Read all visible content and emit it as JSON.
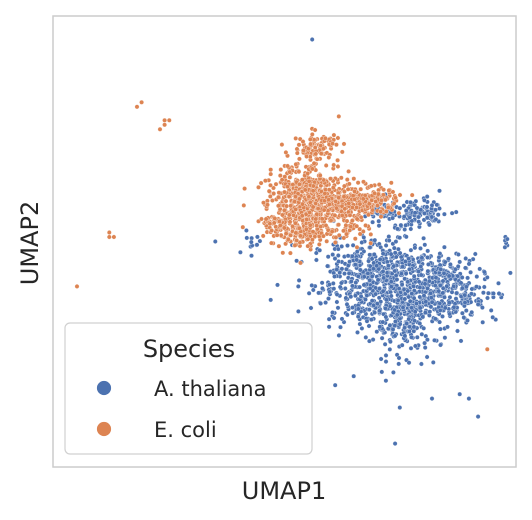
{
  "chart_data": {
    "type": "scatter",
    "title": "",
    "xlabel": "UMAP1",
    "ylabel": "UMAP2",
    "xlim": [
      0,
      100
    ],
    "ylim": [
      0,
      100
    ],
    "grid": false,
    "ticks": false,
    "legend": {
      "title": "Species",
      "placement": "lower-left",
      "entries": [
        {
          "label": "A. thaliana",
          "color": "#4c72b0"
        },
        {
          "label": "E. coli",
          "color": "#dd8452"
        }
      ]
    },
    "series": [
      {
        "name": "A. thaliana",
        "color": "#4c72b0",
        "clusters": [
          {
            "cx": 68,
            "cy": 41,
            "sx": 6,
            "sy": 5,
            "n": 420
          },
          {
            "cx": 77,
            "cy": 36,
            "sx": 5,
            "sy": 5,
            "n": 300
          },
          {
            "cx": 85,
            "cy": 42,
            "sx": 4,
            "sy": 3,
            "n": 150
          },
          {
            "cx": 88,
            "cy": 38,
            "sx": 4,
            "sy": 3,
            "n": 110
          },
          {
            "cx": 76,
            "cy": 32,
            "sx": 3,
            "sy": 4,
            "n": 120
          },
          {
            "cx": 73,
            "cy": 44,
            "sx": 4,
            "sy": 2.5,
            "n": 120
          },
          {
            "cx": 73,
            "cy": 56,
            "sx": 4,
            "sy": 1.6,
            "n": 70
          },
          {
            "cx": 80,
            "cy": 56,
            "sx": 3,
            "sy": 1.6,
            "n": 80
          },
          {
            "cx": 43,
            "cy": 50,
            "sx": 1.2,
            "sy": 1.4,
            "n": 12
          },
          {
            "cx": 96,
            "cy": 38,
            "sx": 1,
            "sy": 0.6,
            "n": 8
          },
          {
            "cx": 98,
            "cy": 50,
            "sx": 0.6,
            "sy": 1.2,
            "n": 6
          }
        ],
        "points": [
          [
            56,
            95
          ],
          [
            35,
            50
          ],
          [
            47,
            37
          ],
          [
            53,
            40
          ],
          [
            66,
            35
          ],
          [
            65,
            20
          ],
          [
            92,
            36
          ],
          [
            93,
            32
          ],
          [
            77,
            23
          ],
          [
            72,
            19
          ],
          [
            61,
            18
          ],
          [
            82,
            15
          ],
          [
            88,
            16
          ],
          [
            75,
            13
          ],
          [
            90,
            15
          ],
          [
            74,
            5
          ],
          [
            92,
            11
          ],
          [
            94,
            42
          ],
          [
            99,
            43
          ]
        ]
      },
      {
        "name": "E. coli",
        "color": "#dd8452",
        "clusters": [
          {
            "cx": 55,
            "cy": 57,
            "sx": 4.5,
            "sy": 4,
            "n": 450
          },
          {
            "cx": 54,
            "cy": 62,
            "sx": 3,
            "sy": 3,
            "n": 160
          },
          {
            "cx": 61,
            "cy": 59,
            "sx": 5,
            "sy": 2.2,
            "n": 220
          },
          {
            "cx": 68,
            "cy": 59,
            "sx": 3.5,
            "sy": 1.5,
            "n": 120
          },
          {
            "cx": 57,
            "cy": 71,
            "sx": 2.5,
            "sy": 1.6,
            "n": 100
          },
          {
            "cx": 48,
            "cy": 54,
            "sx": 2,
            "sy": 1,
            "n": 40
          },
          {
            "cx": 54,
            "cy": 52,
            "sx": 2,
            "sy": 1.5,
            "n": 60
          },
          {
            "cx": 64,
            "cy": 53,
            "sx": 3,
            "sy": 1.5,
            "n": 30
          }
        ],
        "points": [
          [
            18,
            80
          ],
          [
            19,
            81
          ],
          [
            24,
            77
          ],
          [
            24,
            76
          ],
          [
            23,
            75
          ],
          [
            25,
            77
          ],
          [
            12,
            51
          ],
          [
            12,
            52
          ],
          [
            13,
            51
          ],
          [
            5,
            40
          ],
          [
            47,
            65
          ],
          [
            47,
            66
          ],
          [
            50,
            61
          ],
          [
            51,
            60
          ],
          [
            45,
            55
          ],
          [
            46,
            55
          ],
          [
            94,
            26
          ]
        ]
      }
    ]
  }
}
